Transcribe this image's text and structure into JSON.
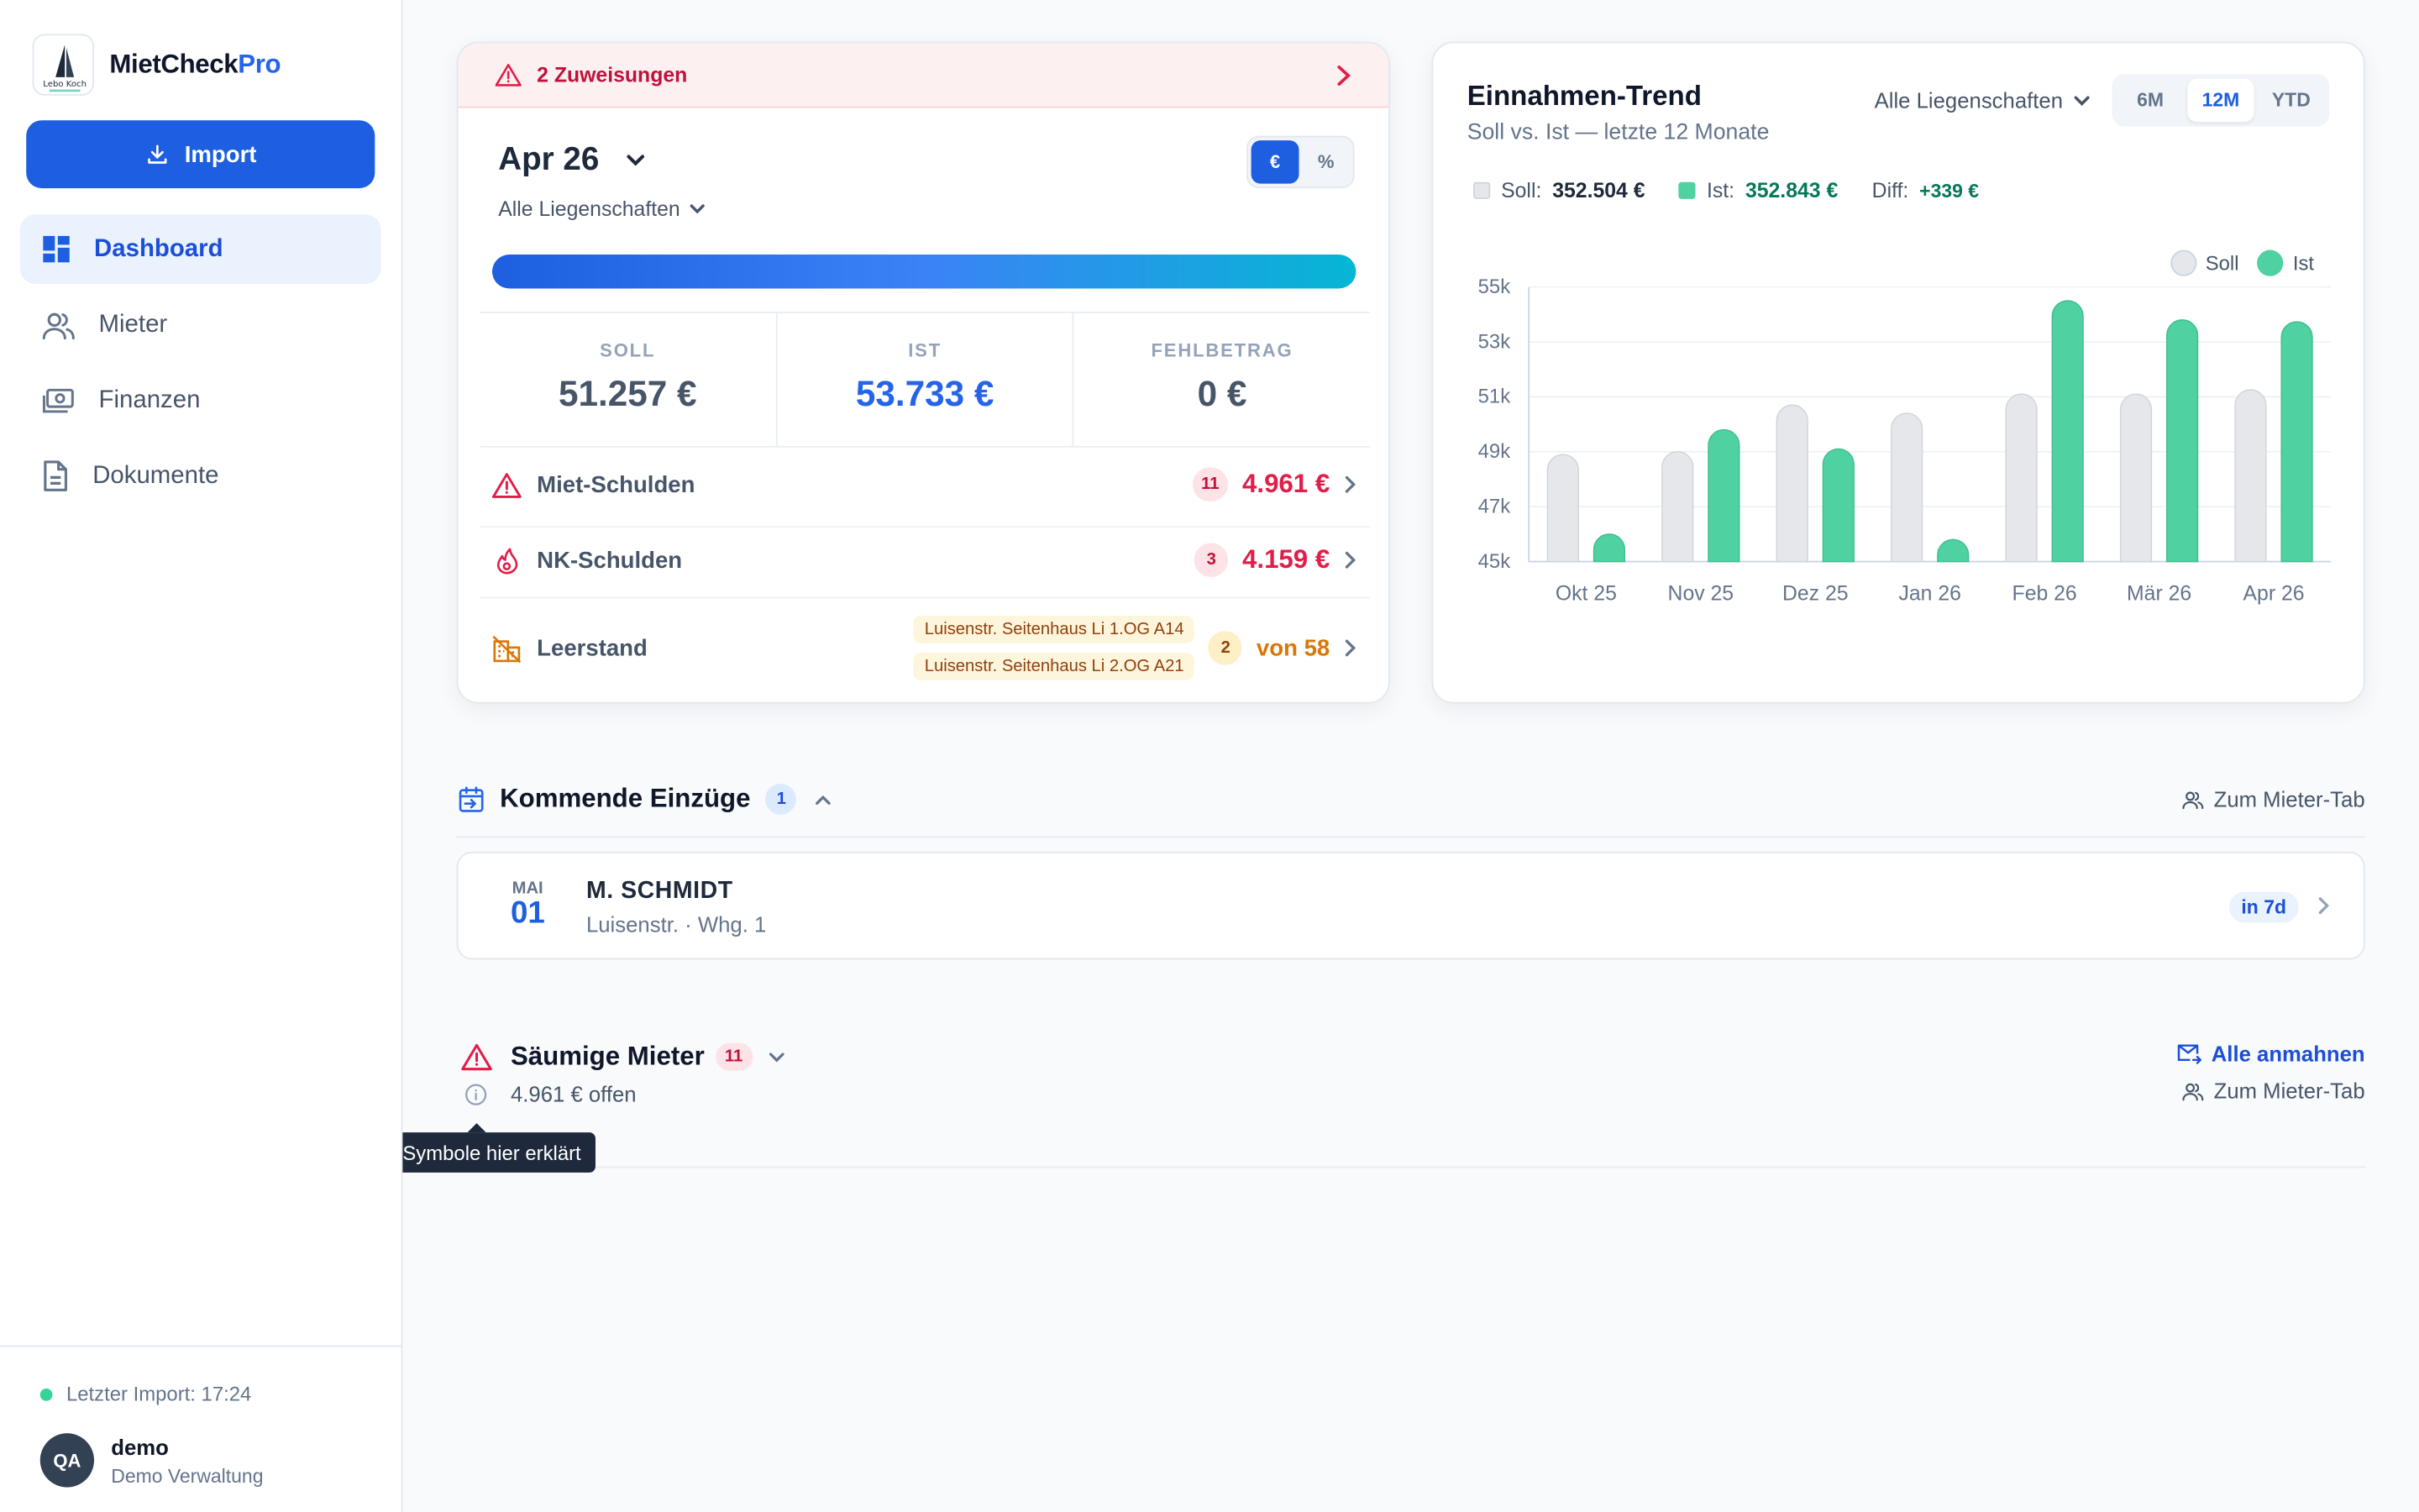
{
  "brand": {
    "name": "MietCheck",
    "suffix": "Pro",
    "logo_text": "Lebo Koch"
  },
  "sidebar": {
    "import_label": "Import",
    "items": [
      {
        "label": "Dashboard",
        "icon": "dashboard-icon",
        "active": true
      },
      {
        "label": "Mieter",
        "icon": "users-icon",
        "active": false
      },
      {
        "label": "Finanzen",
        "icon": "money-icon",
        "active": false
      },
      {
        "label": "Dokumente",
        "icon": "document-icon",
        "active": false
      }
    ],
    "last_import": "Letzter Import: 17:24",
    "user": {
      "initials": "QA",
      "name": "demo",
      "org": "Demo Verwaltung"
    }
  },
  "overview": {
    "alert": "2 Zuweisungen",
    "month": "Apr 26",
    "property": "Alle Liegenschaften",
    "toggle": [
      "€",
      "%"
    ],
    "progress": 1.0,
    "stats": [
      {
        "label": "SOLL",
        "value": "51.257 €"
      },
      {
        "label": "IST",
        "value": "53.733 €"
      },
      {
        "label": "FEHLBETRAG",
        "value": "0 €"
      }
    ],
    "miet": {
      "label": "Miet-Schulden",
      "count": "11",
      "amount": "4.961 €"
    },
    "nk": {
      "label": "NK-Schulden",
      "count": "3",
      "amount": "4.159 €"
    },
    "leer": {
      "label": "Leerstand",
      "units": [
        "Luisenstr. Seitenhaus Li 1.OG A14",
        "Luisenstr. Seitenhaus Li 2.OG A21"
      ],
      "count": "2",
      "total": "von 58"
    }
  },
  "trend": {
    "title": "Einnahmen-Trend",
    "subtitle": "Soll vs. Ist — letzte 12 Monate",
    "property": "Alle Liegenschaften",
    "ranges": [
      "6M",
      "12M",
      "YTD"
    ],
    "soll_label": "Soll:",
    "soll_total": "352.504 €",
    "ist_label": "Ist:",
    "ist_total": "352.843 €",
    "diff_label": "Diff:",
    "diff_value": "+339 €",
    "colors": {
      "soll": "#e5e7eb",
      "ist": "#4fd1a1"
    }
  },
  "chart_data": {
    "type": "bar",
    "categories": [
      "Okt 25",
      "Nov 25",
      "Dez 25",
      "Jan 26",
      "Feb 26",
      "Mär 26",
      "Apr 26"
    ],
    "series": [
      {
        "name": "Soll",
        "values": [
          48900,
          49000,
          50700,
          50400,
          51100,
          51100,
          51257
        ]
      },
      {
        "name": "Ist",
        "values": [
          46000,
          49800,
          49100,
          45800,
          54500,
          53800,
          53733
        ]
      }
    ],
    "yticks": [
      "55k",
      "53k",
      "51k",
      "49k",
      "47k",
      "45k"
    ],
    "ylim": [
      45000,
      55000
    ],
    "legend": "top-right",
    "grid": true
  },
  "movein": {
    "title": "Kommende Einzüge",
    "count": "1",
    "link": "Zum Mieter-Tab",
    "entries": [
      {
        "month": "MAI",
        "day": "01",
        "name": "M. SCHMIDT",
        "address": "Luisenstr. · Whg. 1",
        "badge": "in 7d"
      }
    ]
  },
  "overdue": {
    "title": "Säumige Mieter",
    "count": "11",
    "open": "4.961 € offen",
    "remind_all": "Alle anmahnen",
    "link": "Zum Mieter-Tab",
    "tooltip": "Symbole hier erklärt"
  }
}
